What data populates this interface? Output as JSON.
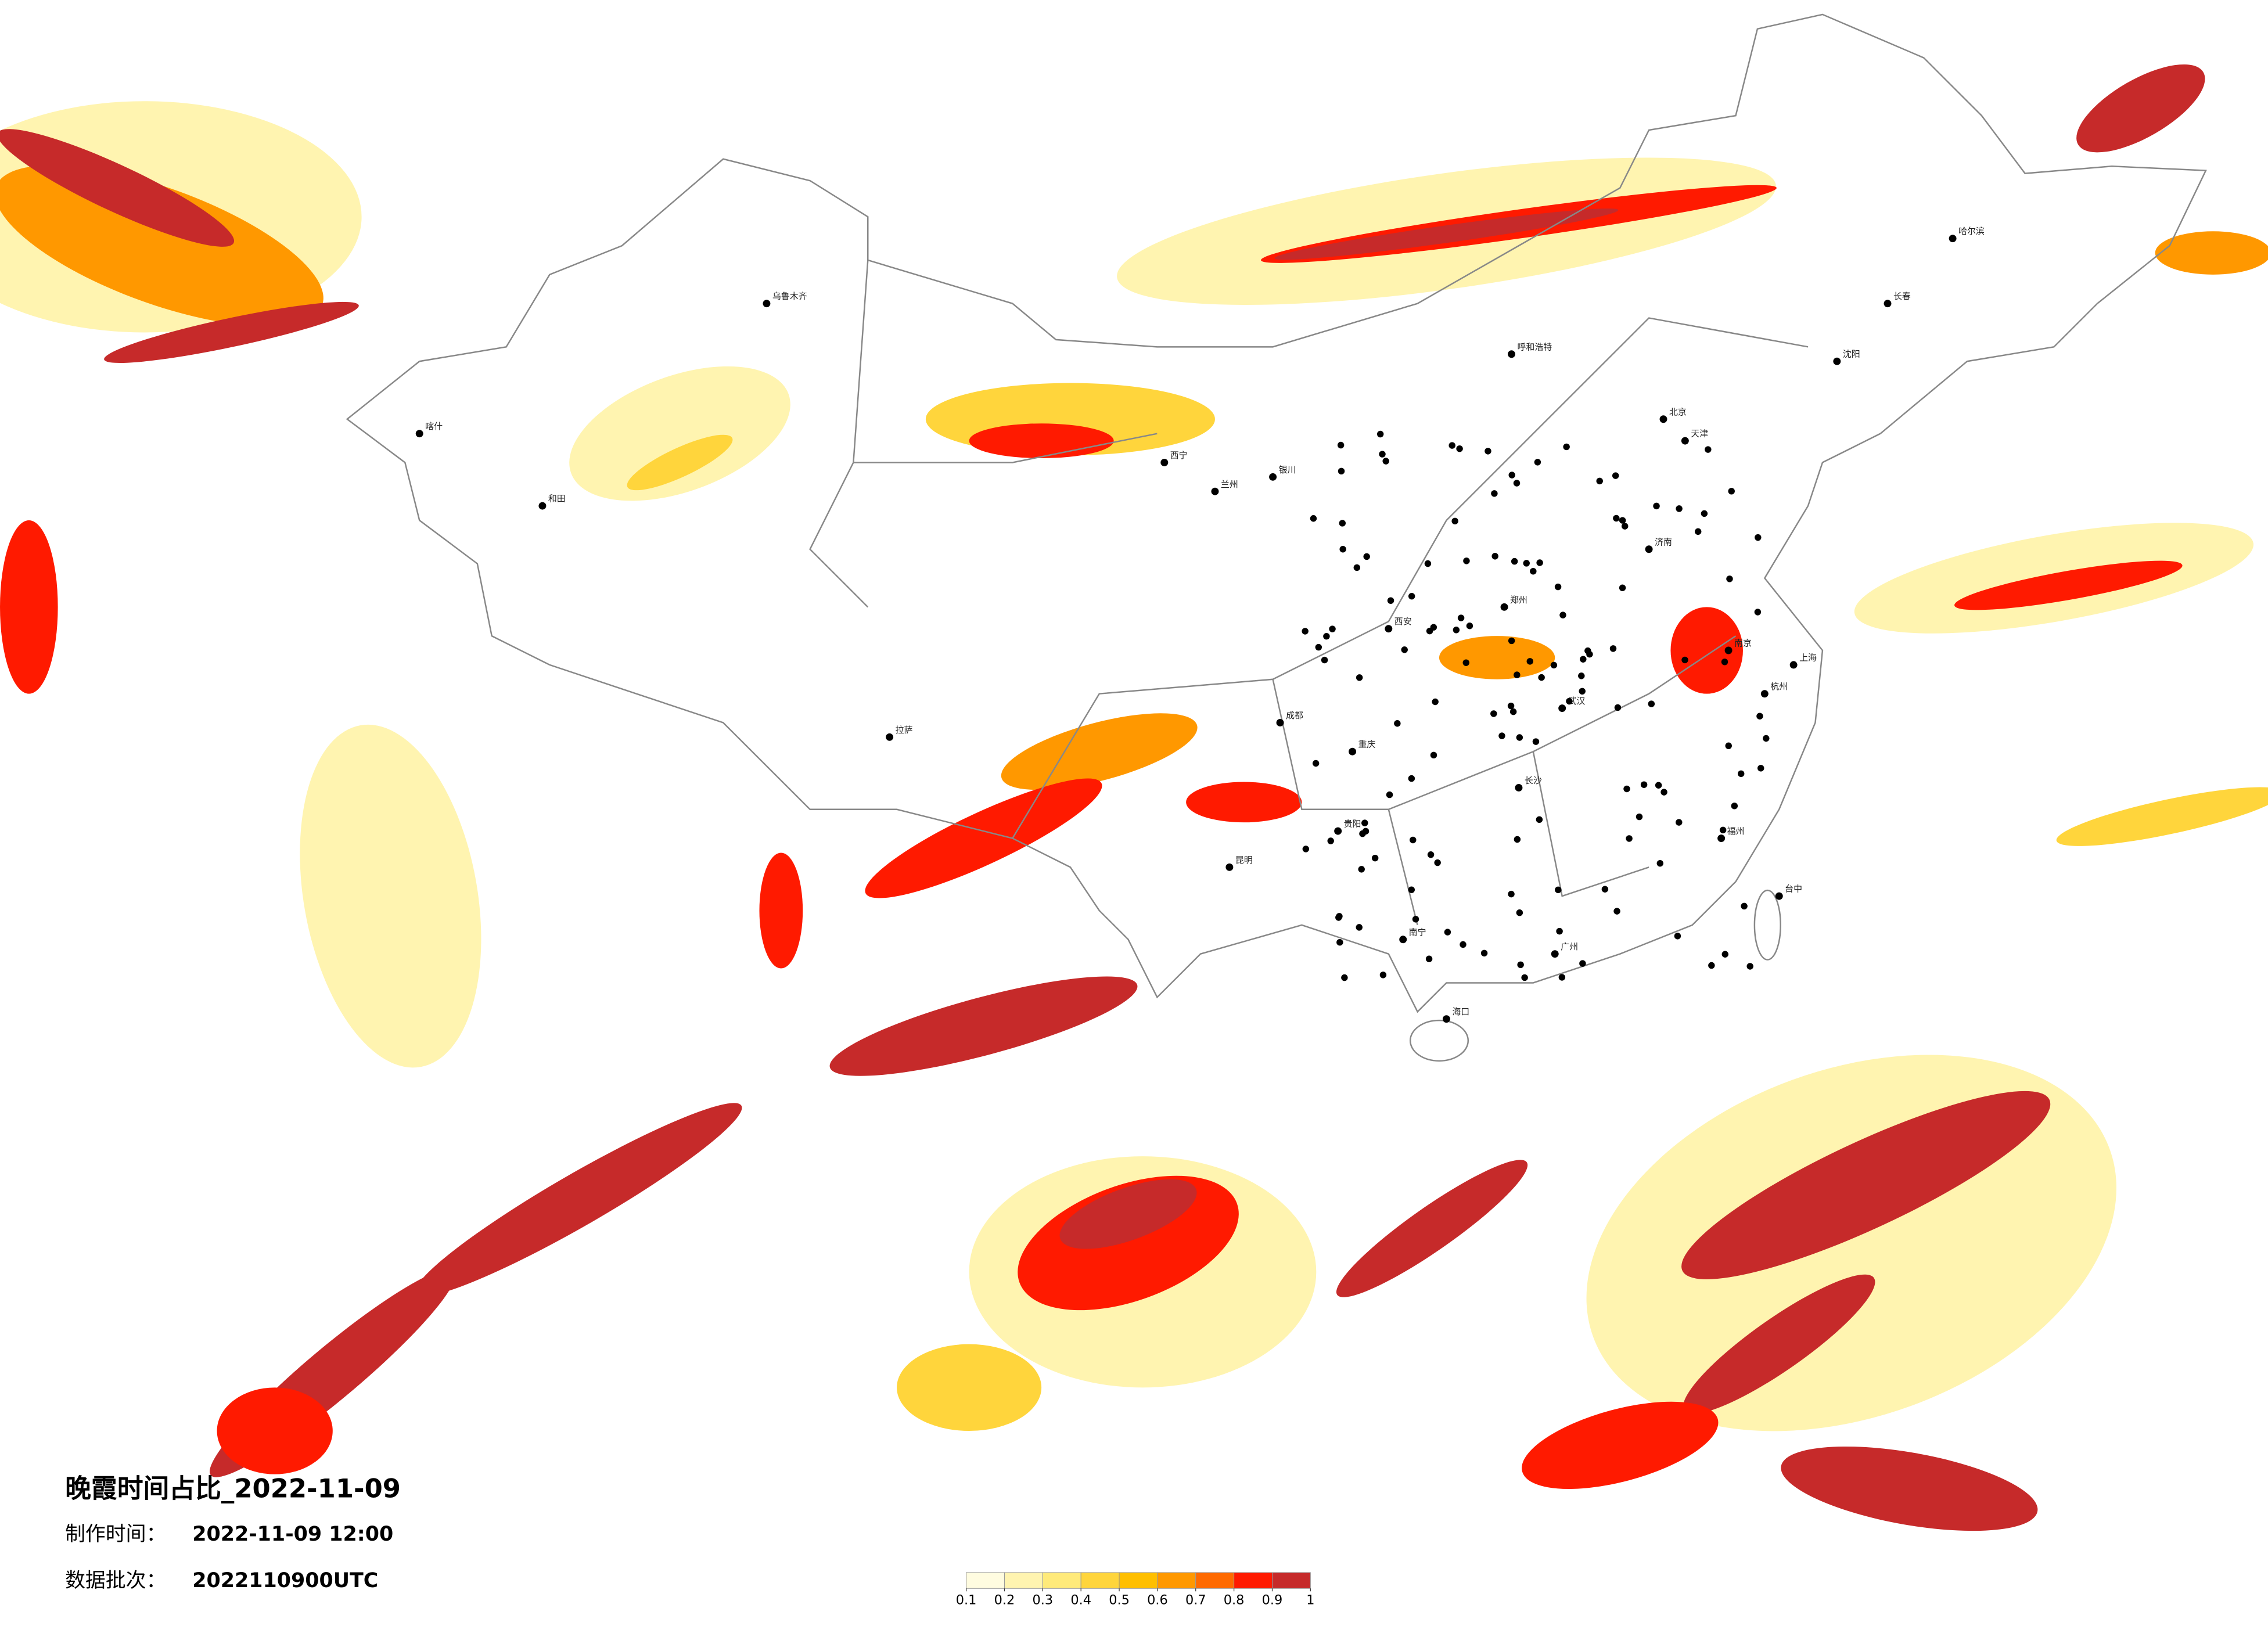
{
  "map": {
    "title": "晚霞时间占比_2022-11-09",
    "make_time_label": "制作时间：",
    "make_time": "2022-11-09 12:00",
    "batch_label": "数据批次：",
    "batch": "2022110900UTC",
    "cities": [
      "乌鲁木齐",
      "喀什",
      "和田",
      "拉萨",
      "西宁",
      "兰州",
      "银川",
      "呼和浩特",
      "北京",
      "天津",
      "沈阳",
      "哈尔滨",
      "长春",
      "郑州",
      "西安",
      "武汉",
      "南京",
      "上海",
      "杭州",
      "长沙",
      "成都",
      "重庆",
      "贵阳",
      "昆明",
      "南宁",
      "广州",
      "海口",
      "台中",
      "福州",
      "济南"
    ]
  },
  "legend": {
    "colors": [
      "#fffce0",
      "#fff4b0",
      "#ffea7a",
      "#ffd53c",
      "#ffbf00",
      "#ff9800",
      "#ff6a00",
      "#ff1a00",
      "#c62a2a"
    ],
    "vlim": [
      0.1,
      1
    ],
    "ticks": [
      0.1,
      0.2,
      0.3,
      0.4,
      0.5,
      0.6,
      0.7,
      0.8,
      0.9,
      1
    ]
  }
}
